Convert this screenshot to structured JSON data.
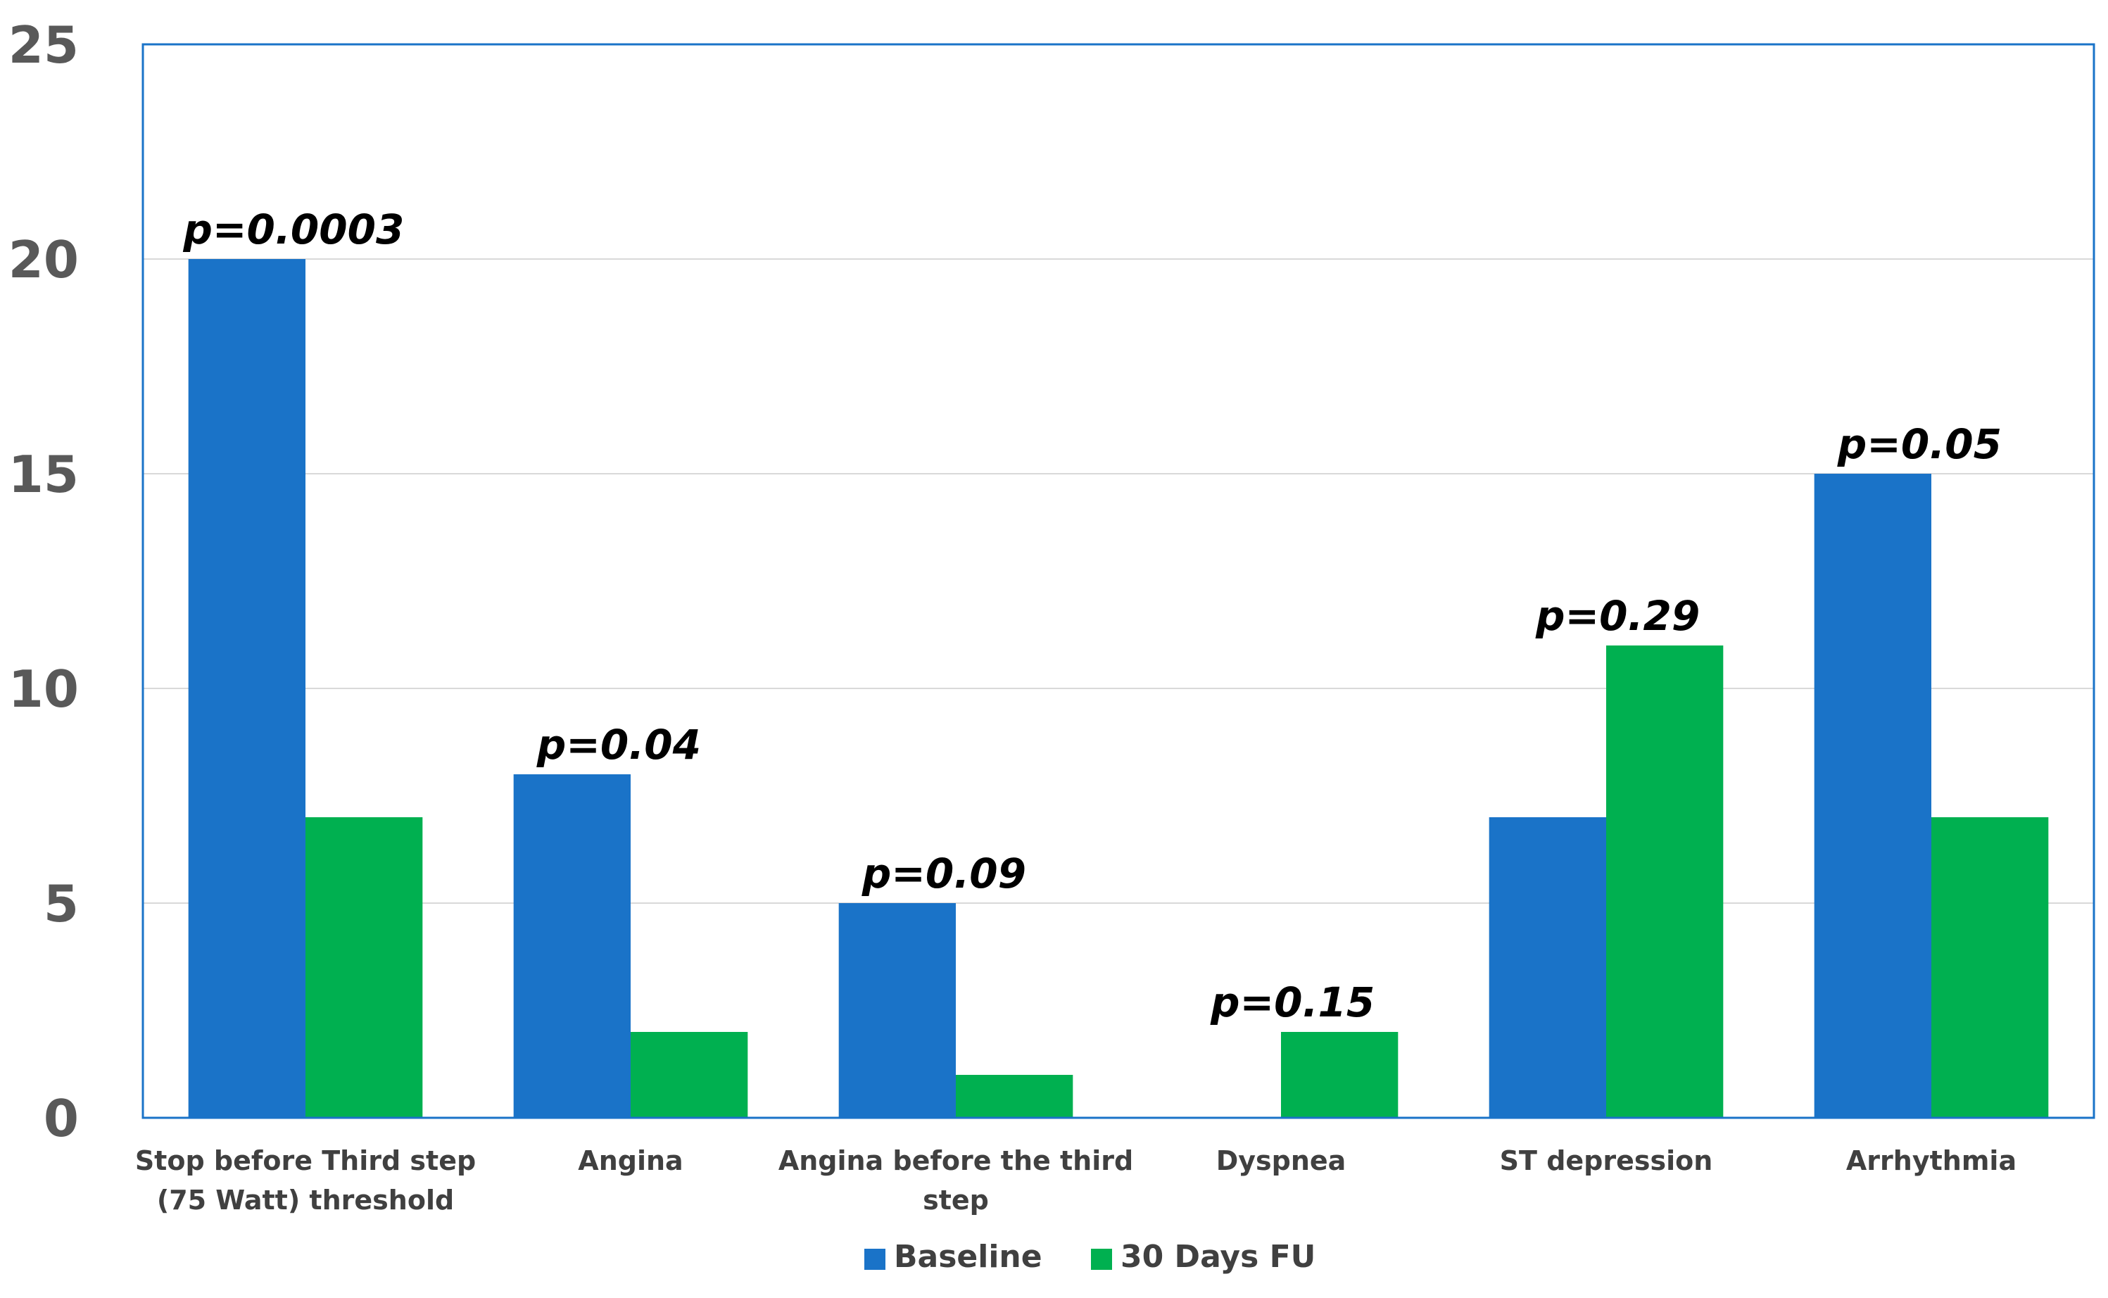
{
  "chart_data": {
    "type": "bar",
    "title": "",
    "xlabel": "",
    "ylabel": "",
    "ylim": [
      0,
      25
    ],
    "yticks": [
      0,
      5,
      10,
      15,
      20,
      25
    ],
    "grid": true,
    "legend_position": "bottom-center",
    "categories": [
      [
        "Stop before Third step",
        "(75 Watt) threshold"
      ],
      [
        "Angina"
      ],
      [
        "Angina before the third",
        "step"
      ],
      [
        "Dyspnea"
      ],
      [
        "ST depression"
      ],
      [
        "Arrhythmia"
      ]
    ],
    "series": [
      {
        "name": "Baseline",
        "color": "#1a73c8",
        "values": [
          20,
          8,
          5,
          0,
          7,
          15
        ]
      },
      {
        "name": "30 Days FU",
        "color": "#00b050",
        "values": [
          7,
          2,
          1,
          2,
          11,
          7
        ]
      }
    ],
    "annotations": [
      "p=0.0003",
      "p=0.04",
      "p=0.09",
      "p=0.15",
      "p=0.29",
      "p=0.05"
    ],
    "colors": {
      "plot_border": "#1a73c8",
      "gridline": "#d9d9d9"
    }
  }
}
